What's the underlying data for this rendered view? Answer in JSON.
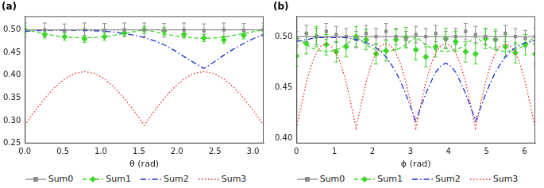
{
  "chart_data": [
    {
      "type": "line",
      "title": "(a)",
      "x_label": "θ (rad)",
      "legend": "bottom",
      "grid": false,
      "xlim": [
        0,
        3.1416
      ],
      "xticks": [
        {
          "value": 0,
          "label": "0.0"
        },
        0.5,
        {
          "value": 1,
          "label": "1.0"
        },
        1.5,
        {
          "value": 2,
          "label": "2.0"
        },
        2.5,
        {
          "value": 3,
          "label": "3.0"
        }
      ],
      "ylim": [
        0.25,
        0.53
      ],
      "yticks": [
        0.25,
        {
          "value": 0.3,
          "label": "0.30"
        },
        0.35,
        {
          "value": 0.4,
          "label": "0.40"
        },
        0.45,
        {
          "value": 0.5,
          "label": "0.50"
        }
      ],
      "x": [
        0,
        0.1309,
        0.2618,
        0.3927,
        0.5236,
        0.6545,
        0.7854,
        0.9163,
        1.0472,
        1.1781,
        1.309,
        1.4399,
        1.5708,
        1.7017,
        1.8326,
        1.9635,
        2.0944,
        2.2253,
        2.3562,
        2.4871,
        2.618,
        2.7489,
        2.8798,
        3.0107,
        3.1416
      ],
      "measured_x": [
        0,
        0.2618,
        0.5236,
        0.7854,
        1.0472,
        1.309,
        1.5708,
        1.8326,
        2.0944,
        2.3562,
        2.618,
        2.8798,
        3.1416
      ],
      "series": [
        {
          "name": "Sum0",
          "color": "#8c8c8c",
          "line_style": "solid",
          "marker": "square",
          "values": [
            0.5,
            0.5,
            0.5,
            0.5,
            0.5,
            0.5,
            0.5,
            0.5,
            0.5,
            0.5,
            0.5,
            0.5,
            0.5,
            0.5,
            0.5,
            0.5,
            0.5,
            0.5,
            0.5,
            0.5,
            0.5,
            0.5,
            0.5,
            0.5,
            0.5
          ],
          "measured": [
            0.5,
            0.5,
            0.498,
            0.5,
            0.499,
            0.5,
            0.5,
            0.499,
            0.5,
            0.498,
            0.5,
            0.499,
            0.5
          ],
          "errors": [
            0.015,
            0.015,
            0.015,
            0.015,
            0.015,
            0.015,
            0.015,
            0.015,
            0.015,
            0.015,
            0.015,
            0.015,
            0.015
          ]
        },
        {
          "name": "Sum1",
          "color": "#3fd42a",
          "line_style": "dashed",
          "marker": "diamond",
          "values": [
            0.5,
            0.496,
            0.491,
            0.487,
            0.484,
            0.483,
            0.483,
            0.483,
            0.485,
            0.488,
            0.492,
            0.496,
            0.5,
            0.496,
            0.491,
            0.487,
            0.484,
            0.482,
            0.481,
            0.482,
            0.484,
            0.488,
            0.492,
            0.496,
            0.5
          ],
          "measured": [
            0.5,
            0.49,
            0.485,
            0.48,
            0.485,
            0.493,
            0.5,
            0.497,
            0.49,
            0.482,
            0.478,
            0.488,
            0.5
          ],
          "errors": [
            0.008,
            0.008,
            0.008,
            0.008,
            0.008,
            0.008,
            0.008,
            0.008,
            0.008,
            0.008,
            0.008,
            0.008,
            0.008
          ]
        },
        {
          "name": "Sum2",
          "color": "#1f2fd8",
          "line_style": "dashdot",
          "values": [
            0.497,
            0.498,
            0.499,
            0.499,
            0.499,
            0.499,
            0.499,
            0.498,
            0.497,
            0.495,
            0.492,
            0.488,
            0.483,
            0.476,
            0.467,
            0.455,
            0.441,
            0.428,
            0.415,
            0.429,
            0.444,
            0.458,
            0.47,
            0.481,
            0.49
          ]
        },
        {
          "name": "Sum3",
          "color": "#f02424",
          "line_style": "dotted",
          "values": [
            0.29,
            0.321,
            0.349,
            0.373,
            0.392,
            0.404,
            0.408,
            0.404,
            0.392,
            0.373,
            0.349,
            0.321,
            0.29,
            0.321,
            0.349,
            0.373,
            0.392,
            0.404,
            0.408,
            0.404,
            0.392,
            0.373,
            0.349,
            0.321,
            0.29
          ]
        }
      ]
    },
    {
      "type": "line",
      "title": "(b)",
      "x_label": "ϕ (rad)",
      "legend": "bottom",
      "grid": false,
      "xlim": [
        0,
        6.2832
      ],
      "xticks": [
        0,
        1,
        2,
        3,
        4,
        5,
        6
      ],
      "ylim": [
        0.395,
        0.52
      ],
      "yticks": [
        {
          "value": 0.4,
          "label": "0.40"
        },
        0.45,
        {
          "value": 0.5,
          "label": "0.50"
        }
      ],
      "x": [
        0,
        0.1309,
        0.2618,
        0.3927,
        0.5236,
        0.6545,
        0.7854,
        0.9163,
        1.0472,
        1.1781,
        1.309,
        1.4399,
        1.5708,
        1.7017,
        1.8326,
        1.9635,
        2.0944,
        2.2253,
        2.3562,
        2.4871,
        2.618,
        2.7489,
        2.8798,
        3.0107,
        3.1416,
        3.2725,
        3.4034,
        3.5343,
        3.6652,
        3.7961,
        3.927,
        4.0579,
        4.1888,
        4.3197,
        4.4506,
        4.5815,
        4.7124,
        4.8433,
        4.9742,
        5.1051,
        5.236,
        5.3669,
        5.4978,
        5.6287,
        5.7596,
        5.8905,
        6.0214,
        6.1523,
        6.2832
      ],
      "measured_x": [
        0,
        0.2618,
        0.5236,
        0.7854,
        1.0472,
        1.309,
        1.5708,
        1.8326,
        2.0944,
        2.3562,
        2.618,
        2.8798,
        3.1416,
        3.4034,
        3.6652,
        3.927,
        4.1888,
        4.4506,
        4.7124,
        4.9742,
        5.236,
        5.4978,
        5.7596,
        6.0214,
        6.2832
      ],
      "series": [
        {
          "name": "Sum0",
          "color": "#8c8c8c",
          "line_style": "solid",
          "marker": "square",
          "values": [
            0.5,
            0.5,
            0.5,
            0.5,
            0.5,
            0.5,
            0.5,
            0.5,
            0.5,
            0.5,
            0.5,
            0.5,
            0.5,
            0.5,
            0.5,
            0.5,
            0.5,
            0.5,
            0.5,
            0.5,
            0.5,
            0.5,
            0.5,
            0.5,
            0.5,
            0.5,
            0.5,
            0.5,
            0.5,
            0.5,
            0.5,
            0.5,
            0.5,
            0.5,
            0.5,
            0.5,
            0.5,
            0.5,
            0.5,
            0.5,
            0.5,
            0.5,
            0.5,
            0.5,
            0.5,
            0.5,
            0.5,
            0.5,
            0.5
          ],
          "measured": [
            0.497,
            0.503,
            0.5,
            0.505,
            0.502,
            0.5,
            0.497,
            0.503,
            0.5,
            0.505,
            0.5,
            0.497,
            0.502,
            0.5,
            0.503,
            0.497,
            0.5,
            0.505,
            0.502,
            0.5,
            0.497,
            0.503,
            0.5,
            0.498,
            0.5
          ],
          "errors": [
            0.008,
            0.008,
            0.008,
            0.008,
            0.008,
            0.008,
            0.008,
            0.008,
            0.008,
            0.008,
            0.008,
            0.008,
            0.008,
            0.008,
            0.008,
            0.008,
            0.008,
            0.008,
            0.008,
            0.008,
            0.008,
            0.008,
            0.008,
            0.008,
            0.008
          ]
        },
        {
          "name": "Sum1",
          "color": "#3fd42a",
          "line_style": "dashed",
          "marker": "diamond",
          "values": [
            0.5,
            0.496,
            0.492,
            0.489,
            0.487,
            0.486,
            0.485,
            0.486,
            0.487,
            0.489,
            0.492,
            0.496,
            0.5,
            0.496,
            0.492,
            0.489,
            0.487,
            0.486,
            0.485,
            0.486,
            0.487,
            0.489,
            0.492,
            0.496,
            0.5,
            0.496,
            0.492,
            0.489,
            0.487,
            0.486,
            0.485,
            0.486,
            0.487,
            0.489,
            0.492,
            0.496,
            0.5,
            0.496,
            0.492,
            0.489,
            0.487,
            0.486,
            0.485,
            0.486,
            0.487,
            0.489,
            0.492,
            0.496,
            0.5
          ],
          "measured": [
            0.481,
            0.493,
            0.5,
            0.492,
            0.485,
            0.49,
            0.5,
            0.497,
            0.483,
            0.486,
            0.497,
            0.499,
            0.487,
            0.48,
            0.49,
            0.498,
            0.495,
            0.485,
            0.483,
            0.498,
            0.497,
            0.49,
            0.484,
            0.492,
            0.483
          ],
          "errors": [
            0.01,
            0.01,
            0.01,
            0.01,
            0.01,
            0.01,
            0.01,
            0.01,
            0.01,
            0.01,
            0.01,
            0.01,
            0.01,
            0.01,
            0.01,
            0.01,
            0.01,
            0.01,
            0.01,
            0.01,
            0.01,
            0.01,
            0.01,
            0.01,
            0.01
          ]
        },
        {
          "name": "Sum2",
          "color": "#1f2fd8",
          "line_style": "dashdot",
          "values": [
            0.495,
            0.496,
            0.497,
            0.498,
            0.499,
            0.499,
            0.499,
            0.499,
            0.499,
            0.499,
            0.499,
            0.498,
            0.497,
            0.496,
            0.494,
            0.492,
            0.489,
            0.485,
            0.48,
            0.473,
            0.465,
            0.455,
            0.443,
            0.43,
            0.417,
            0.431,
            0.444,
            0.455,
            0.465,
            0.471,
            0.474,
            0.471,
            0.465,
            0.455,
            0.444,
            0.431,
            0.417,
            0.43,
            0.443,
            0.455,
            0.465,
            0.473,
            0.48,
            0.485,
            0.489,
            0.492,
            0.494,
            0.495,
            0.496
          ]
        },
        {
          "name": "Sum3",
          "color": "#f02424",
          "line_style": "dotted",
          "values": [
            0.41,
            0.433,
            0.455,
            0.472,
            0.484,
            0.491,
            0.493,
            0.491,
            0.484,
            0.472,
            0.455,
            0.433,
            0.41,
            0.433,
            0.455,
            0.472,
            0.484,
            0.491,
            0.493,
            0.491,
            0.484,
            0.472,
            0.455,
            0.433,
            0.41,
            0.433,
            0.455,
            0.472,
            0.484,
            0.491,
            0.493,
            0.491,
            0.484,
            0.472,
            0.455,
            0.433,
            0.41,
            0.433,
            0.455,
            0.472,
            0.484,
            0.491,
            0.493,
            0.491,
            0.484,
            0.472,
            0.455,
            0.433,
            0.41
          ]
        }
      ]
    }
  ]
}
